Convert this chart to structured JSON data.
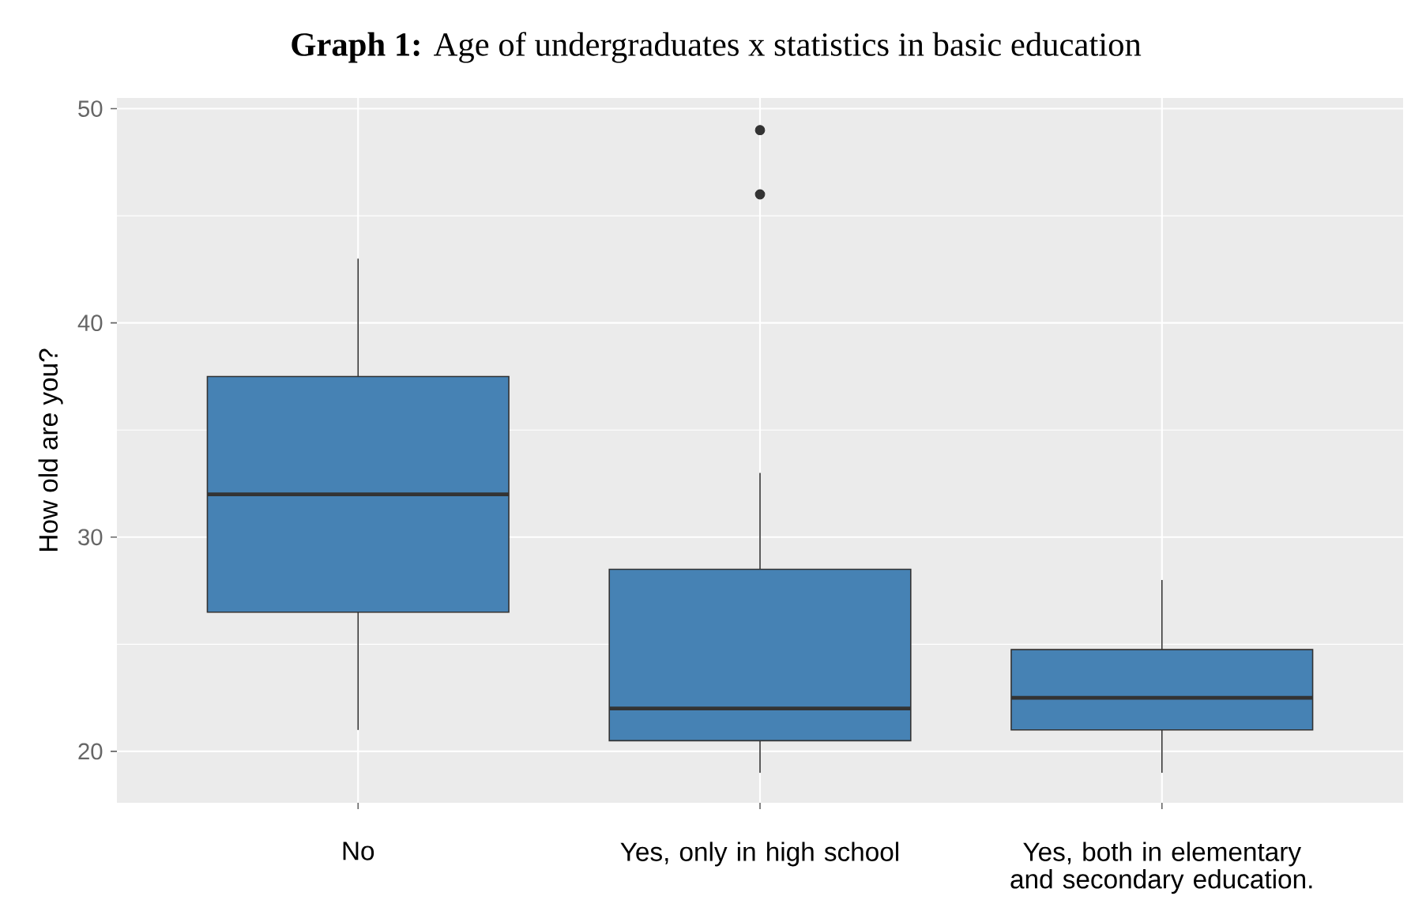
{
  "chart_data": {
    "type": "box",
    "title": "**Graph 1:** Age of undergraduates x statistics in basic education",
    "ylabel": "How old are you?",
    "categories": [
      "No",
      "Yes, only in high school",
      "Yes, both in elementary and secondary education."
    ],
    "color": "#4682b4",
    "boxes": [
      {
        "low": 21,
        "q1": 26.5,
        "median": 32,
        "q3": 37.5,
        "high": 43
      },
      {
        "low": 19,
        "q1": 20.5,
        "median": 22,
        "q3": 28.5,
        "high": 33,
        "outliers": [
          46,
          49
        ]
      },
      {
        "low": 19,
        "q1": 21,
        "median": 22.5,
        "q3": 24.75,
        "high": 28
      }
    ],
    "ylim": [
      17.6,
      50.5
    ],
    "yticks": [
      20,
      30,
      40,
      50
    ],
    "grid": true
  }
}
